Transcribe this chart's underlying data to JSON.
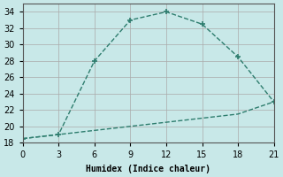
{
  "xlabel": "Humidex (Indice chaleur)",
  "line1_x": [
    0,
    3,
    6,
    9,
    12,
    15,
    18,
    21
  ],
  "line1_y": [
    18.5,
    19,
    28,
    33,
    34,
    32.5,
    28.5,
    23
  ],
  "line2_x": [
    0,
    3,
    6,
    9,
    12,
    15,
    18,
    21
  ],
  "line2_y": [
    18.5,
    19,
    19.5,
    20,
    20.5,
    21,
    21.5,
    23
  ],
  "line_color": "#2e7d6e",
  "bg_color": "#c8e8e8",
  "grid_color": "#aaaaaa",
  "xlim": [
    0,
    21
  ],
  "ylim": [
    18,
    35
  ],
  "xticks": [
    0,
    3,
    6,
    9,
    12,
    15,
    18,
    21
  ],
  "yticks": [
    18,
    20,
    22,
    24,
    26,
    28,
    30,
    32,
    34
  ]
}
